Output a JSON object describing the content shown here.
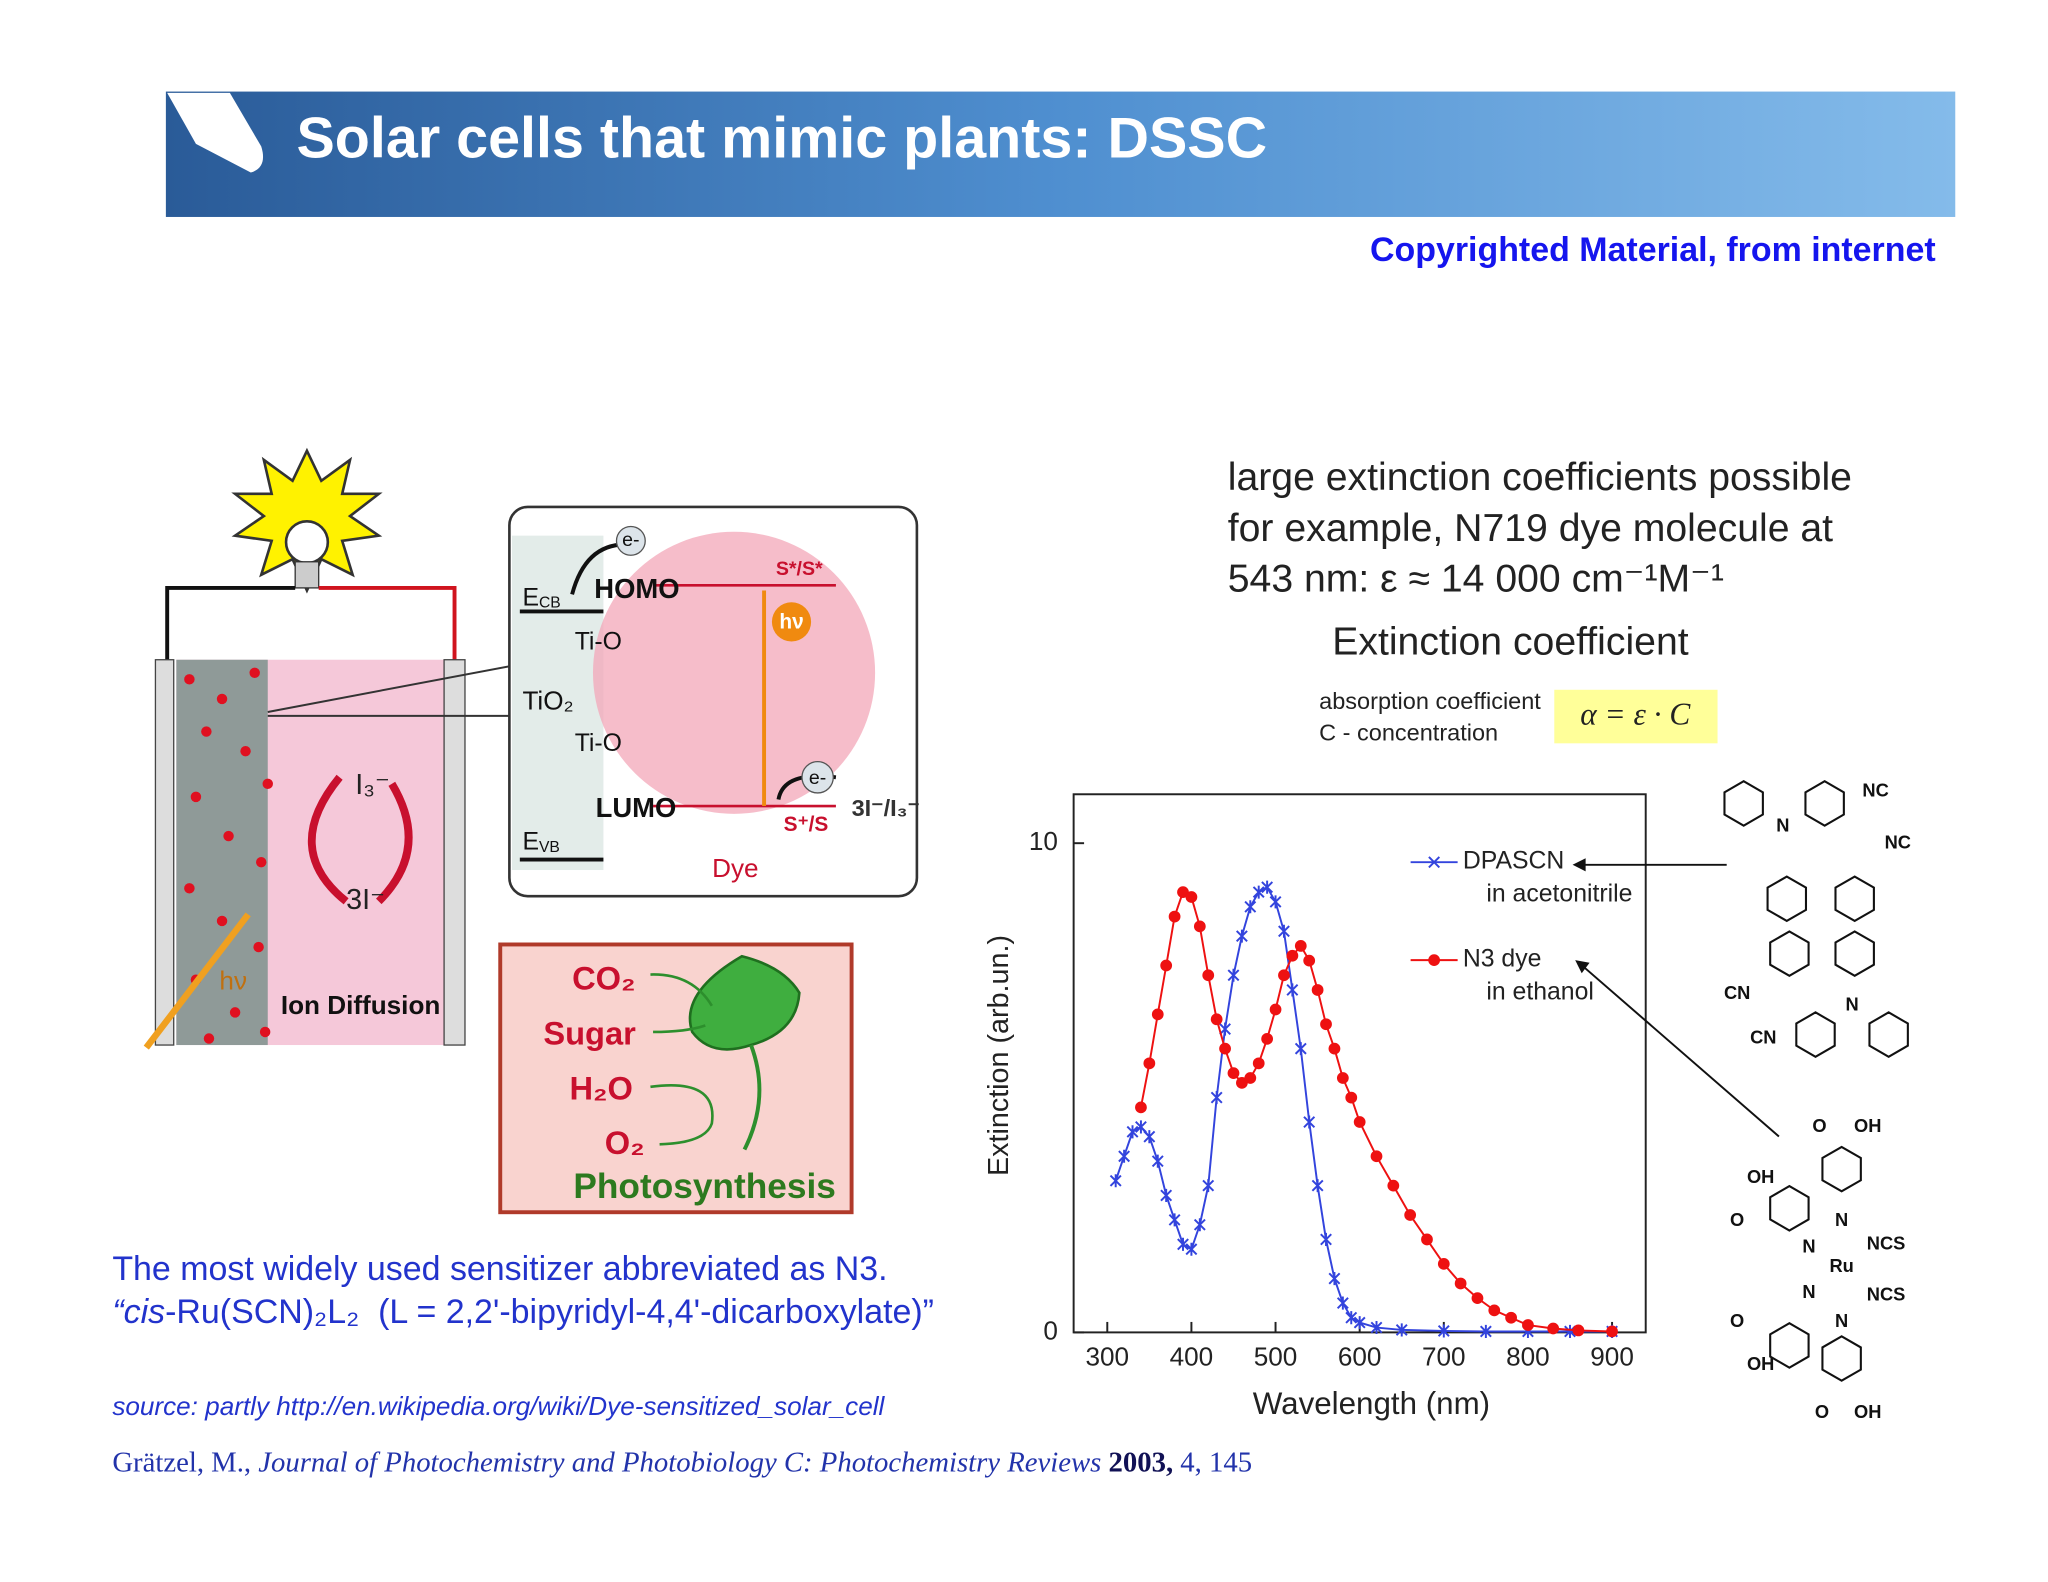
{
  "header": {
    "title": "Solar cells that mimic plants: DSSC",
    "note": "Copyrighted Material, from internet"
  },
  "dssc_diagram": {
    "labels": {
      "triiodide": "I₃⁻",
      "iodide": "3I⁻",
      "light": "hν",
      "ion_diffusion": "Ion Diffusion"
    },
    "inset": {
      "electron_top": "e-",
      "homo": "HOMO",
      "ecb": {
        "main": "E",
        "sub": "CB"
      },
      "ti_o_top": "Ti-O",
      "tio2": "TiO₂",
      "ti_o_bottom": "Ti-O",
      "lumo": "LUMO",
      "evb": {
        "main": "E",
        "sub": "VB"
      },
      "excited": "S*/S*",
      "light": "hν",
      "electron_bottom": "e-",
      "oxidized": "S⁺/S",
      "redox": "3I⁻/I₃⁻",
      "dye": "Dye"
    }
  },
  "photosynthesis": {
    "co2": "CO₂",
    "sugar": "Sugar",
    "h2o": "H₂O",
    "o2": "O₂",
    "title": "Photosynthesis"
  },
  "extinction": {
    "lines": [
      "large extinction coefficients possible",
      "for example, N719 dye molecule at",
      "543 nm: ε ≈ 14 000 cm⁻¹M⁻¹"
    ],
    "heading": "Extinction coefficient",
    "definitions": [
      "absorption coefficient",
      "C - concentration"
    ],
    "formula": "α = ε · C"
  },
  "chart_data": {
    "type": "line",
    "x_label": "Wavelength (nm)",
    "y_label": "Extinction (arb.un.)",
    "xlim": [
      260,
      940
    ],
    "ylim": [
      0,
      11
    ],
    "xticks": [
      300,
      400,
      500,
      600,
      700,
      800,
      900
    ],
    "yticks": [
      0,
      10
    ],
    "legend": "upper right",
    "series": [
      {
        "name": "DPASCN",
        "solvent": "in acetonitrile",
        "color": "#3344dd",
        "marker": "star",
        "x": [
          310,
          320,
          330,
          340,
          350,
          360,
          370,
          380,
          390,
          400,
          410,
          420,
          430,
          440,
          450,
          460,
          470,
          480,
          490,
          500,
          510,
          520,
          530,
          540,
          550,
          560,
          570,
          580,
          590,
          600,
          620,
          650,
          700,
          750,
          800,
          850,
          900
        ],
        "values": [
          3.1,
          3.6,
          4.1,
          4.2,
          4.0,
          3.5,
          2.8,
          2.3,
          1.8,
          1.7,
          2.2,
          3.0,
          4.8,
          6.2,
          7.3,
          8.1,
          8.7,
          9.0,
          9.1,
          8.8,
          8.2,
          7.0,
          5.8,
          4.3,
          3.0,
          1.9,
          1.1,
          0.6,
          0.3,
          0.2,
          0.1,
          0.05,
          0.03,
          0.02,
          0.02,
          0.02,
          0.02
        ]
      },
      {
        "name": "N3 dye",
        "solvent": "in ethanol",
        "color": "#ee1111",
        "marker": "dot",
        "x": [
          340,
          350,
          360,
          370,
          380,
          390,
          400,
          410,
          420,
          430,
          440,
          450,
          460,
          470,
          480,
          490,
          500,
          510,
          520,
          530,
          540,
          550,
          560,
          570,
          580,
          590,
          600,
          620,
          640,
          660,
          680,
          700,
          720,
          740,
          760,
          780,
          800,
          830,
          860,
          900
        ],
        "values": [
          4.6,
          5.5,
          6.5,
          7.5,
          8.5,
          9.0,
          8.9,
          8.3,
          7.3,
          6.4,
          5.8,
          5.3,
          5.1,
          5.2,
          5.5,
          6.0,
          6.6,
          7.3,
          7.7,
          7.9,
          7.6,
          7.0,
          6.3,
          5.8,
          5.2,
          4.8,
          4.3,
          3.6,
          3.0,
          2.4,
          1.9,
          1.4,
          1.0,
          0.7,
          0.45,
          0.3,
          0.15,
          0.08,
          0.04,
          0.02
        ]
      }
    ]
  },
  "molecules": {
    "dpascn": [
      "N",
      "NC",
      "NC",
      "CN",
      "CN",
      "N"
    ],
    "n3": [
      "O",
      "OH",
      "OH",
      "O",
      "N",
      "N",
      "NCS",
      "Ru",
      "NCS",
      "N",
      "N",
      "O",
      "OH",
      "O",
      "OH"
    ]
  },
  "footer": {
    "sensitizer": "The most widely used sensitizer abbreviated as N3.",
    "formula_parts": [
      "“",
      "cis",
      "-Ru(SCN)₂L₂  (L = 2,2'-bipyridyl-4,4'-dicarboxylate)”"
    ],
    "source": "source: partly http://en.wikipedia.org/wiki/Dye-sensitized_solar_cell",
    "citation": [
      "Grätzel, M., ",
      "Journal of Photochemistry and Photobiology C: Photochemistry Reviews",
      " 2003,",
      " 4, 145"
    ]
  }
}
